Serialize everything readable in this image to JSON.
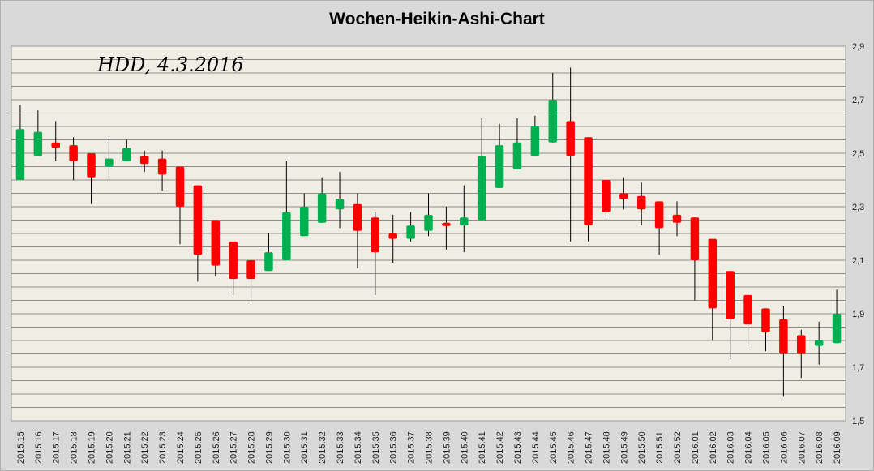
{
  "chart_data": {
    "type": "candlestick",
    "title": "Wochen-Heikin-Ashi-Chart",
    "annotation": "HDD, 4.3.2016",
    "ylim": [
      1.5,
      2.9
    ],
    "yticks": [
      "1,5",
      "1,7",
      "1,9",
      "2,1",
      "2,3",
      "2,5",
      "2,7",
      "2,9"
    ],
    "grid": true,
    "colors": {
      "up": "#00b050",
      "down": "#ff0000",
      "wick": "#000000",
      "plot_bg": "#f0eee4",
      "grid": "#8c8c8c"
    },
    "categories": [
      "2015.15",
      "2015.16",
      "2015.17",
      "2015.18",
      "2015.19",
      "2015.20",
      "2015.21",
      "2015.22",
      "2015.23",
      "2015.24",
      "2015.25",
      "2015.26",
      "2015.27",
      "2015.28",
      "2015.29",
      "2015.30",
      "2015.31",
      "2015.32",
      "2015.33",
      "2015.34",
      "2015.35",
      "2015.36",
      "2015.37",
      "2015.38",
      "2015.39",
      "2015.40",
      "2015.41",
      "2015.42",
      "2015.43",
      "2015.44",
      "2015.45",
      "2015.46",
      "2015.47",
      "2015.48",
      "2015.49",
      "2015.50",
      "2015.51",
      "2015.52",
      "2016.01",
      "2016.02",
      "2016.03",
      "2016.04",
      "2016.05",
      "2016.06",
      "2016.07",
      "2016.08",
      "2016.09"
    ],
    "open": [
      2.4,
      2.49,
      2.54,
      2.53,
      2.5,
      2.45,
      2.47,
      2.49,
      2.48,
      2.45,
      2.38,
      2.25,
      2.17,
      2.1,
      2.06,
      2.1,
      2.19,
      2.24,
      2.29,
      2.31,
      2.26,
      2.2,
      2.18,
      2.21,
      2.24,
      2.23,
      2.25,
      2.37,
      2.44,
      2.49,
      2.54,
      2.62,
      2.56,
      2.4,
      2.35,
      2.34,
      2.32,
      2.27,
      2.26,
      2.18,
      2.06,
      1.97,
      1.92,
      1.88,
      1.82,
      1.78,
      1.79
    ],
    "close": [
      2.59,
      2.58,
      2.52,
      2.47,
      2.41,
      2.48,
      2.52,
      2.46,
      2.42,
      2.3,
      2.12,
      2.08,
      2.03,
      2.03,
      2.13,
      2.28,
      2.3,
      2.35,
      2.33,
      2.21,
      2.13,
      2.18,
      2.23,
      2.27,
      2.23,
      2.26,
      2.49,
      2.53,
      2.54,
      2.6,
      2.7,
      2.49,
      2.23,
      2.28,
      2.33,
      2.29,
      2.22,
      2.24,
      2.1,
      1.92,
      1.88,
      1.86,
      1.83,
      1.75,
      1.75,
      1.8,
      1.9
    ],
    "high": [
      2.68,
      2.66,
      2.62,
      2.56,
      2.5,
      2.56,
      2.55,
      2.51,
      2.51,
      2.45,
      2.38,
      2.25,
      2.17,
      2.1,
      2.2,
      2.47,
      2.35,
      2.41,
      2.43,
      2.35,
      2.28,
      2.27,
      2.28,
      2.35,
      2.3,
      2.38,
      2.63,
      2.61,
      2.63,
      2.64,
      2.8,
      2.82,
      2.56,
      2.4,
      2.41,
      2.39,
      2.32,
      2.32,
      2.26,
      2.18,
      2.06,
      1.97,
      1.92,
      1.93,
      1.84,
      1.87,
      1.99
    ],
    "low": [
      2.4,
      2.49,
      2.47,
      2.4,
      2.31,
      2.41,
      2.47,
      2.43,
      2.36,
      2.16,
      2.02,
      2.04,
      1.97,
      1.94,
      2.06,
      2.1,
      2.19,
      2.24,
      2.22,
      2.07,
      1.97,
      2.09,
      2.17,
      2.19,
      2.14,
      2.13,
      2.25,
      2.37,
      2.44,
      2.49,
      2.54,
      2.17,
      2.17,
      2.25,
      2.29,
      2.23,
      2.12,
      2.19,
      1.95,
      1.8,
      1.73,
      1.78,
      1.76,
      1.59,
      1.66,
      1.71,
      1.79
    ]
  }
}
